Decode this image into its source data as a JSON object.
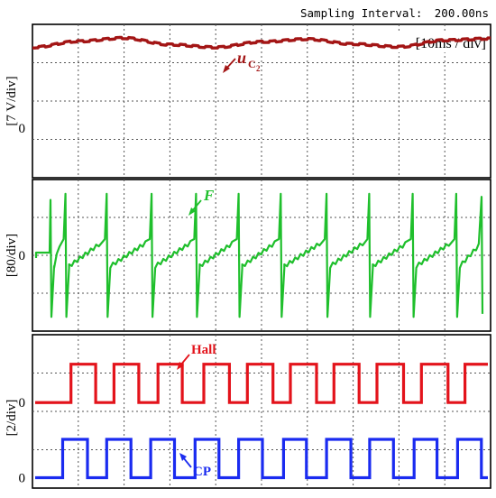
{
  "header": {
    "sampling_label": "Sampling Interval:",
    "sampling_value": "200.00ns"
  },
  "colors": {
    "uc2": "#a31515",
    "force": "#1fbf2c",
    "hall": "#e3131b",
    "cp": "#1a2bf0",
    "grid": "#555555",
    "frame": "#000000"
  },
  "chart_data": [
    {
      "type": "line",
      "time_scale": "[10ms / div]",
      "ylabel": "[7 V/div]",
      "zero_label": "0",
      "x_divisions": 10,
      "y_divisions": 4,
      "zero_division_from_top": 2.7,
      "series": [
        {
          "name": "uC2",
          "name_main": "u",
          "name_sub": "C",
          "name_subsub": "2",
          "color": "#a31515",
          "x": [
            0,
            1,
            2,
            3,
            4,
            5,
            6,
            7,
            8,
            9,
            10
          ],
          "values": [
            14.7,
            15.8,
            16.4,
            15.2,
            14.7,
            15.7,
            16.2,
            15.3,
            14.8,
            16.0,
            16.3
          ]
        }
      ]
    },
    {
      "type": "line",
      "ylabel": "[80/div]",
      "zero_label": "0",
      "x_divisions": 10,
      "y_divisions": 4,
      "zero_division_from_top": 2.0,
      "series": [
        {
          "name": "F",
          "color": "#1fbf2c",
          "spike_times_div": [
            0.72,
            1.62,
            2.6,
            3.57,
            4.5,
            5.42,
            6.42,
            7.35,
            8.3,
            9.25
          ],
          "peak_positive": 130,
          "peak_negative": -130
        }
      ]
    },
    {
      "type": "line",
      "ylabel": "[2/div]",
      "x_divisions": 10,
      "y_divisions": 4,
      "series": [
        {
          "name": "Hall",
          "color": "#e3131b",
          "zero_label": "0",
          "zero_division_from_top": 1.77,
          "low": 0,
          "high": 2,
          "start_level": "low",
          "edges_div": [
            0.84,
            1.38,
            1.78,
            2.32,
            2.74,
            3.27,
            3.74,
            4.3,
            4.69,
            5.25,
            5.63,
            6.2,
            6.58,
            7.13,
            7.52,
            8.1,
            8.49,
            9.07,
            9.44
          ]
        },
        {
          "name": "CP",
          "color": "#1a2bf0",
          "zero_label": "0",
          "zero_division_from_top": 3.73,
          "low": 0,
          "high": 2,
          "start_level": "low",
          "edges_div": [
            0.66,
            1.2,
            1.62,
            2.15,
            2.58,
            3.1,
            3.55,
            4.07,
            4.5,
            5.02,
            5.48,
            5.98,
            6.42,
            6.95,
            7.36,
            7.88,
            8.33,
            8.83,
            9.28,
            9.8
          ]
        }
      ]
    }
  ]
}
